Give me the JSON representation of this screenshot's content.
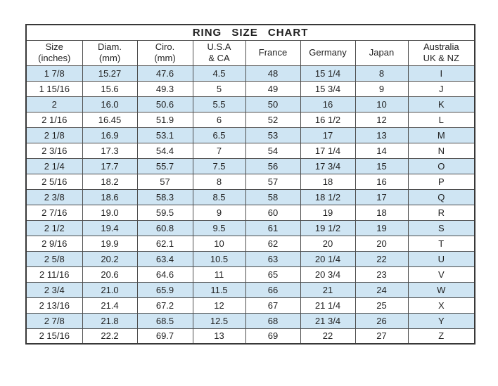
{
  "page": {
    "title": "RING SIZE CHART"
  },
  "colors": {
    "stripe_blue": "#cfe5f3",
    "border_outer": "#383838",
    "border_inner": "#4c4c4c",
    "text": "#1f1f1f",
    "background": "#ffffff"
  },
  "chart_data": {
    "type": "table",
    "title": "RING SIZE CHART",
    "columns": [
      "Size\n(inches)",
      "Diam.\n(mm)",
      "Ciro.\n(mm)",
      "U.S.A\n& CA",
      "France",
      "Germany",
      "Japan",
      "Australia\nUK & NZ"
    ],
    "rows": [
      [
        "1 7/8",
        "15.27",
        "47.6",
        "4.5",
        "48",
        "15 1/4",
        "8",
        "I"
      ],
      [
        "1 15/16",
        "15.6",
        "49.3",
        "5",
        "49",
        "15 3/4",
        "9",
        "J"
      ],
      [
        "2",
        "16.0",
        "50.6",
        "5.5",
        "50",
        "16",
        "10",
        "K"
      ],
      [
        "2 1/16",
        "16.45",
        "51.9",
        "6",
        "52",
        "16 1/2",
        "12",
        "L"
      ],
      [
        "2 1/8",
        "16.9",
        "53.1",
        "6.5",
        "53",
        "17",
        "13",
        "M"
      ],
      [
        "2 3/16",
        "17.3",
        "54.4",
        "7",
        "54",
        "17 1/4",
        "14",
        "N"
      ],
      [
        "2 1/4",
        "17.7",
        "55.7",
        "7.5",
        "56",
        "17 3/4",
        "15",
        "O"
      ],
      [
        "2 5/16",
        "18.2",
        "57",
        "8",
        "57",
        "18",
        "16",
        "P"
      ],
      [
        "2 3/8",
        "18.6",
        "58.3",
        "8.5",
        "58",
        "18 1/2",
        "17",
        "Q"
      ],
      [
        "2 7/16",
        "19.0",
        "59.5",
        "9",
        "60",
        "19",
        "18",
        "R"
      ],
      [
        "2 1/2",
        "19.4",
        "60.8",
        "9.5",
        "61",
        "19 1/2",
        "19",
        "S"
      ],
      [
        "2 9/16",
        "19.9",
        "62.1",
        "10",
        "62",
        "20",
        "20",
        "T"
      ],
      [
        "2 5/8",
        "20.2",
        "63.4",
        "10.5",
        "63",
        "20 1/4",
        "22",
        "U"
      ],
      [
        "2 11/16",
        "20.6",
        "64.6",
        "11",
        "65",
        "20 3/4",
        "23",
        "V"
      ],
      [
        "2 3/4",
        "21.0",
        "65.9",
        "11.5",
        "66",
        "21",
        "24",
        "W"
      ],
      [
        "2 13/16",
        "21.4",
        "67.2",
        "12",
        "67",
        "21 1/4",
        "25",
        "X"
      ],
      [
        "2 7/8",
        "21.8",
        "68.5",
        "12.5",
        "68",
        "21 3/4",
        "26",
        "Y"
      ],
      [
        "2 15/16",
        "22.2",
        "69.7",
        "13",
        "69",
        "22",
        "27",
        "Z"
      ]
    ],
    "layout": {
      "stripe_pattern": "odd rows light blue, even rows white",
      "grid": true
    }
  }
}
